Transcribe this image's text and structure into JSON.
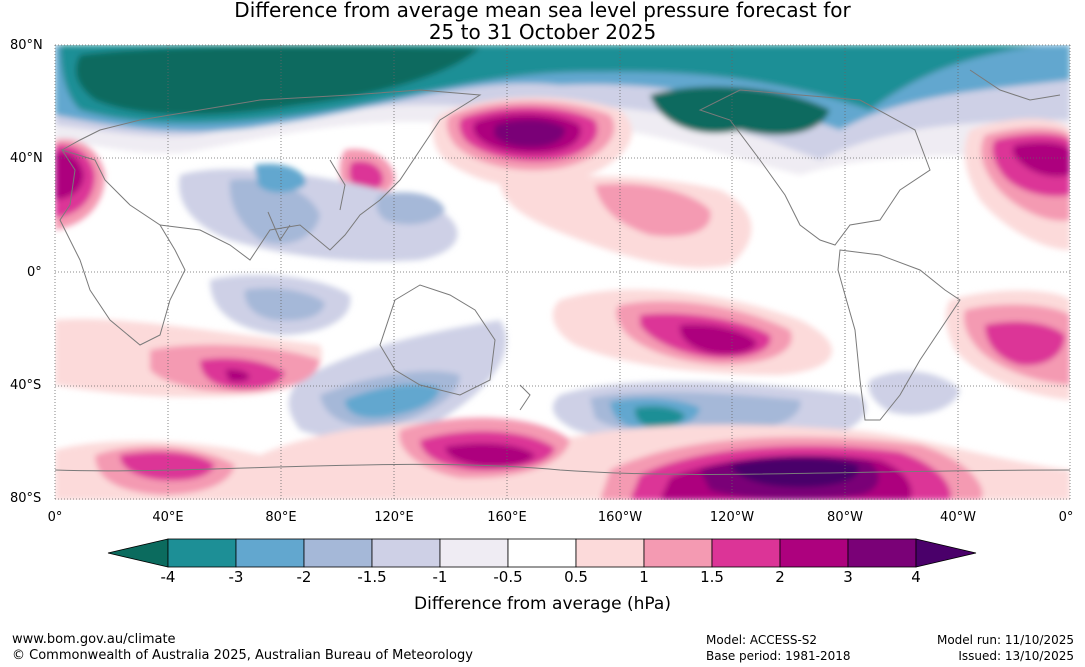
{
  "title_line1": "Difference from average mean sea level pressure forecast for",
  "title_line2": "25 to 31 October 2025",
  "lat_labels": [
    "80°N",
    "40°N",
    "0°",
    "40°S",
    "80°S"
  ],
  "lon_labels": [
    "0°",
    "40°E",
    "80°E",
    "120°E",
    "160°E",
    "160°W",
    "120°W",
    "80°W",
    "40°W",
    "0°"
  ],
  "legend": {
    "title": "Difference from average (hPa)",
    "ticks": [
      "-4",
      "-3",
      "-2",
      "-1.5",
      "-1",
      "-0.5",
      "0.5",
      "1",
      "1.5",
      "2",
      "3",
      "4"
    ],
    "colors": [
      "#0b6b5e",
      "#1d8f96",
      "#62a7cf",
      "#a5b8d8",
      "#ced0e6",
      "#efecf3",
      "#ffffff",
      "#fcdada",
      "#f49ab2",
      "#dc3497",
      "#ad017e",
      "#7a0177",
      "#4a006a"
    ]
  },
  "footer": {
    "website": "www.bom.gov.au/climate",
    "copyright": "© Commonwealth of Australia 2025, Australian Bureau of Meteorology",
    "model": "Model: ACCESS-S2",
    "base_period": "Base period: 1981-2018",
    "model_run": "Model run: 11/10/2025",
    "issued": "Issued: 13/10/2025"
  }
}
